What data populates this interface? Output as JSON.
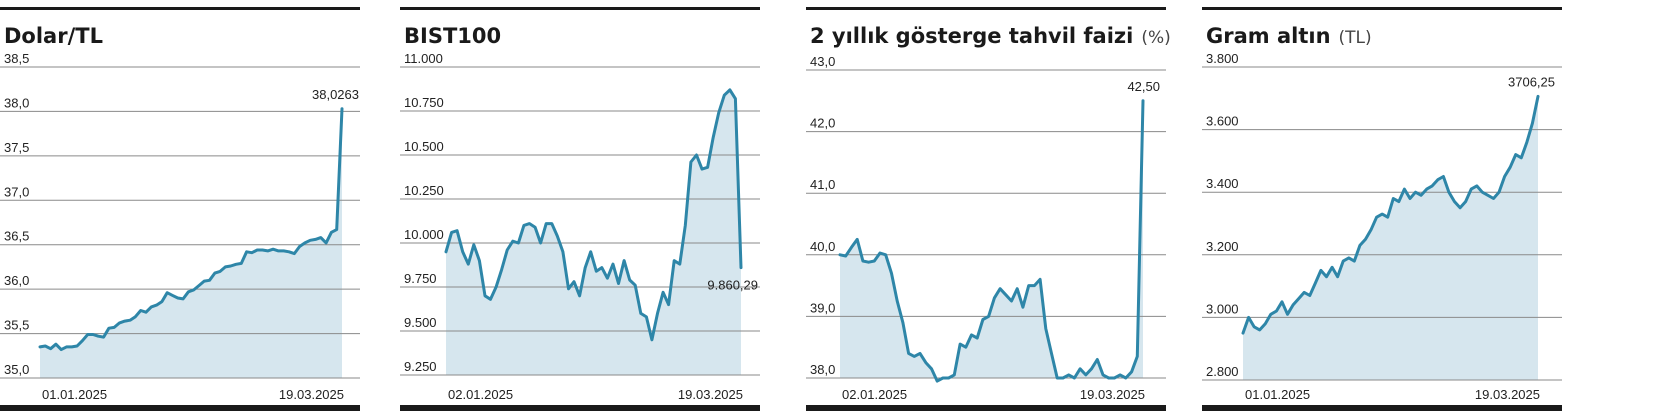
{
  "colors": {
    "line": "#2e86a8",
    "area": "#d6e6ee",
    "bar": "#1a1a1a",
    "grid": "#8a8a8a"
  },
  "chart_data": [
    {
      "type": "area",
      "title": "Dolar/TL",
      "unit": "",
      "yticks": [
        "38,5",
        "38,0",
        "37,5",
        "37,0",
        "36,5",
        "36,0",
        "35,5",
        "35,0"
      ],
      "ylim": [
        35.0,
        38.5
      ],
      "xlabels": [
        "01.01.2025",
        "19.03.2025"
      ],
      "end_label": "38,0263",
      "values": [
        35.35,
        35.36,
        35.33,
        35.38,
        35.32,
        35.35,
        35.35,
        35.36,
        35.42,
        35.49,
        35.49,
        35.47,
        35.46,
        35.56,
        35.57,
        35.62,
        35.64,
        35.65,
        35.69,
        35.76,
        35.74,
        35.8,
        35.82,
        35.86,
        35.96,
        35.93,
        35.9,
        35.89,
        35.97,
        35.99,
        36.04,
        36.09,
        36.1,
        36.18,
        36.2,
        36.25,
        36.26,
        36.28,
        36.29,
        36.42,
        36.41,
        36.44,
        36.44,
        36.43,
        36.45,
        36.43,
        36.43,
        36.42,
        36.4,
        36.48,
        36.52,
        36.55,
        36.56,
        36.58,
        36.52,
        36.64,
        36.67,
        38.03
      ]
    },
    {
      "type": "area",
      "title": "BIST100",
      "unit": "",
      "yticks": [
        "11.000",
        "10.750",
        "10.500",
        "10.250",
        "10.000",
        "9.750",
        "9.500",
        "9.250"
      ],
      "ylim": [
        9250,
        11000
      ],
      "xlabels": [
        "02.01.2025",
        "19.03.2025"
      ],
      "end_label": "9.860,29",
      "values": [
        9950,
        10060,
        10070,
        9950,
        9880,
        9990,
        9900,
        9700,
        9680,
        9750,
        9850,
        9960,
        10010,
        10000,
        10100,
        10110,
        10090,
        10000,
        10110,
        10110,
        10040,
        9950,
        9740,
        9780,
        9700,
        9860,
        9950,
        9840,
        9860,
        9800,
        9880,
        9770,
        9900,
        9790,
        9760,
        9600,
        9580,
        9450,
        9600,
        9720,
        9650,
        9900,
        9880,
        10100,
        10460,
        10500,
        10420,
        10430,
        10600,
        10740,
        10840,
        10870,
        10820,
        9860
      ]
    },
    {
      "type": "area",
      "title": "2 yıllık gösterge tahvil faizi",
      "unit": "(%)",
      "yticks": [
        "43,0",
        "42,0",
        "41,0",
        "40,0",
        "39,0",
        "38,0"
      ],
      "ylim": [
        38.0,
        43.0
      ],
      "xlabels": [
        "02.01.2025",
        "19.03.2025"
      ],
      "end_label": "42,50",
      "values": [
        40.0,
        39.98,
        40.12,
        40.25,
        39.9,
        39.88,
        39.9,
        40.03,
        40.0,
        39.7,
        39.25,
        38.9,
        38.4,
        38.35,
        38.4,
        38.25,
        38.15,
        37.95,
        38.0,
        38.0,
        38.05,
        38.55,
        38.5,
        38.7,
        38.65,
        38.95,
        39.0,
        39.3,
        39.45,
        39.35,
        39.25,
        39.45,
        39.15,
        39.5,
        39.5,
        39.6,
        38.8,
        38.4,
        38.0,
        38.0,
        38.05,
        38.0,
        38.15,
        38.05,
        38.15,
        38.3,
        38.05,
        38.0,
        38.0,
        38.05,
        38.0,
        38.1,
        38.35,
        42.5
      ]
    },
    {
      "type": "area",
      "title": "Gram altın",
      "unit": "(TL)",
      "yticks": [
        "3.800",
        "3.600",
        "3.400",
        "3.200",
        "3.000",
        "2.800"
      ],
      "ylim": [
        2800,
        3800
      ],
      "xlabels": [
        "01.01.2025",
        "19.03.2025"
      ],
      "end_label": "3706,25",
      "values": [
        2950,
        3000,
        2970,
        2960,
        2980,
        3010,
        3020,
        3050,
        3010,
        3040,
        3060,
        3080,
        3070,
        3110,
        3150,
        3130,
        3160,
        3130,
        3180,
        3190,
        3180,
        3230,
        3250,
        3280,
        3320,
        3330,
        3320,
        3380,
        3370,
        3410,
        3380,
        3400,
        3390,
        3410,
        3420,
        3440,
        3450,
        3400,
        3370,
        3350,
        3370,
        3410,
        3420,
        3400,
        3390,
        3380,
        3400,
        3450,
        3480,
        3520,
        3510,
        3560,
        3620,
        3706
      ]
    }
  ]
}
